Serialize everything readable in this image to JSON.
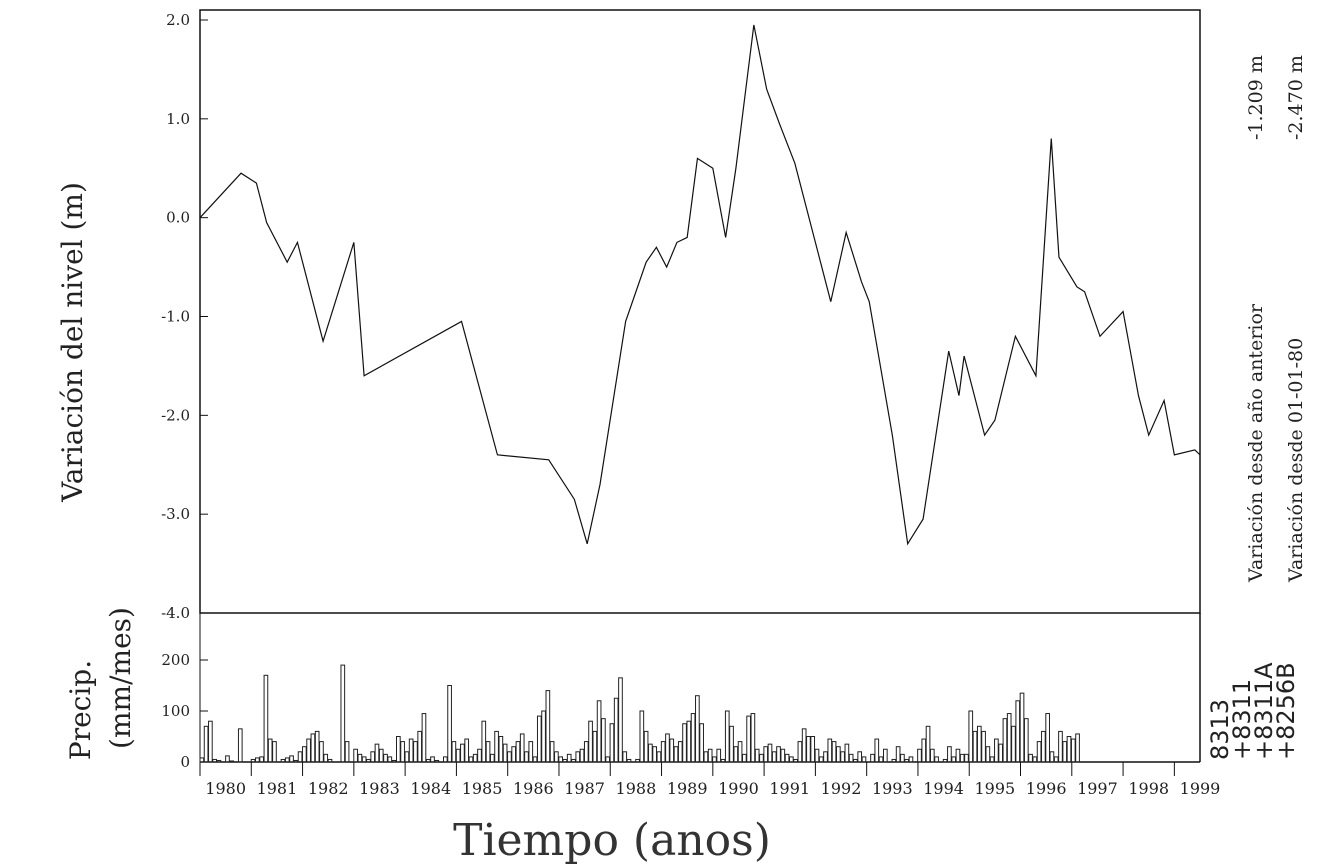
{
  "chart_data": [
    {
      "type": "line",
      "ylabel": "Variación del nivel (m)",
      "ylim": [
        -4.0,
        2.0
      ],
      "yticks": [
        "2.0",
        "1.0",
        "0.0",
        "-1.0",
        "-2.0",
        "-3.0",
        "-4.0"
      ],
      "xlim": [
        1979.5,
        1999.0
      ],
      "series": [
        {
          "x": [
            1979.5,
            1980.3,
            1980.6,
            1980.8,
            1981.2,
            1981.4,
            1981.9,
            1982.5,
            1982.7,
            1984.6,
            1985.3,
            1986.3,
            1986.8,
            1987.05,
            1987.3,
            1987.8,
            1988.2,
            1988.4,
            1988.6,
            1988.8,
            1989.0,
            1989.2,
            1989.5,
            1989.75,
            1989.95,
            1990.3,
            1990.55,
            1990.8,
            1991.1,
            1991.8,
            1992.1,
            1992.4,
            1992.55,
            1993.0,
            1993.3,
            1993.6,
            1994.1,
            1994.3,
            1994.4,
            1994.8,
            1995.0,
            1995.4,
            1995.8,
            1996.1,
            1996.25,
            1996.6,
            1996.75,
            1997.05,
            1997.5,
            1997.8,
            1998.0,
            1998.3,
            1998.5,
            1998.9,
            1999.0
          ],
          "y": [
            0.0,
            0.45,
            0.35,
            -0.05,
            -0.45,
            -0.25,
            -1.25,
            -0.25,
            -1.6,
            -1.05,
            -2.4,
            -2.45,
            -2.85,
            -3.3,
            -2.7,
            -1.05,
            -0.45,
            -0.3,
            -0.5,
            -0.25,
            -0.2,
            0.6,
            0.5,
            -0.2,
            0.5,
            1.95,
            1.3,
            0.95,
            0.55,
            -0.85,
            -0.15,
            -0.65,
            -0.85,
            -2.2,
            -3.3,
            -3.05,
            -1.35,
            -1.8,
            -1.4,
            -2.2,
            -2.05,
            -1.2,
            -1.6,
            0.8,
            -0.4,
            -0.7,
            -0.75,
            -1.2,
            -0.95,
            -1.8,
            -2.2,
            -1.85,
            -2.4,
            -2.35,
            -2.4
          ]
        }
      ]
    },
    {
      "type": "bar",
      "ylabel": "Precip. (mm/mes)",
      "ylim": [
        0,
        200
      ],
      "yticks": [
        "200",
        "100",
        "0"
      ],
      "xticks": [
        "1980",
        "1981",
        "1982",
        "1983",
        "1984",
        "1985",
        "1986",
        "1987",
        "1988",
        "1989",
        "1990",
        "1991",
        "1992",
        "1993",
        "1994",
        "1995",
        "1996",
        "1997",
        "1998",
        "1999"
      ],
      "x_start": 1979.5,
      "x_step": 0.0833,
      "values": [
        8,
        70,
        80,
        5,
        3,
        0,
        12,
        2,
        0,
        65,
        0,
        0,
        5,
        8,
        10,
        170,
        45,
        40,
        0,
        5,
        8,
        12,
        3,
        20,
        30,
        45,
        55,
        60,
        40,
        15,
        5,
        0,
        0,
        190,
        40,
        0,
        25,
        15,
        10,
        5,
        20,
        35,
        25,
        15,
        10,
        3,
        50,
        40,
        20,
        45,
        40,
        60,
        95,
        5,
        10,
        3,
        0,
        10,
        150,
        40,
        25,
        35,
        45,
        10,
        15,
        25,
        80,
        40,
        15,
        60,
        50,
        35,
        20,
        30,
        40,
        55,
        20,
        40,
        10,
        90,
        100,
        140,
        40,
        20,
        10,
        5,
        15,
        5,
        20,
        25,
        40,
        80,
        60,
        120,
        85,
        10,
        75,
        125,
        165,
        20,
        5,
        0,
        5,
        100,
        60,
        35,
        30,
        20,
        40,
        55,
        45,
        30,
        40,
        75,
        80,
        95,
        130,
        75,
        20,
        25,
        10,
        25,
        5,
        100,
        70,
        30,
        40,
        15,
        90,
        95,
        25,
        15,
        30,
        35,
        20,
        30,
        25,
        15,
        10,
        5,
        40,
        65,
        50,
        50,
        25,
        10,
        20,
        45,
        40,
        30,
        20,
        35,
        15,
        5,
        20,
        10,
        0,
        15,
        45,
        10,
        25,
        0,
        5,
        30,
        15,
        5,
        10,
        0,
        25,
        45,
        70,
        25,
        10,
        0,
        5,
        30,
        10,
        25,
        15,
        15,
        100,
        60,
        70,
        60,
        30,
        10,
        45,
        35,
        85,
        95,
        70,
        120,
        135,
        85,
        15,
        10,
        40,
        60,
        95,
        20,
        10,
        60,
        40,
        50,
        45,
        55
      ]
    }
  ],
  "axes": {
    "xlabel": "Tiempo (anos)",
    "level_ylabel": "Variación del nivel (m)",
    "precip_ylabel_line1": "Precip.",
    "precip_ylabel_line2": "(mm/mes)"
  },
  "side_panel": {
    "variation_prev_label": "Variación desde año anterior",
    "variation_prev_value": "-1.209 m",
    "variation_start_label": "Variación desde 01-01-80",
    "variation_start_value": "-2.470 m"
  },
  "stations": [
    "8313",
    "+8311",
    "+8311A",
    "+8256B"
  ],
  "colors": {
    "line": "#111111",
    "bars": "#222222",
    "frame": "#111111"
  }
}
